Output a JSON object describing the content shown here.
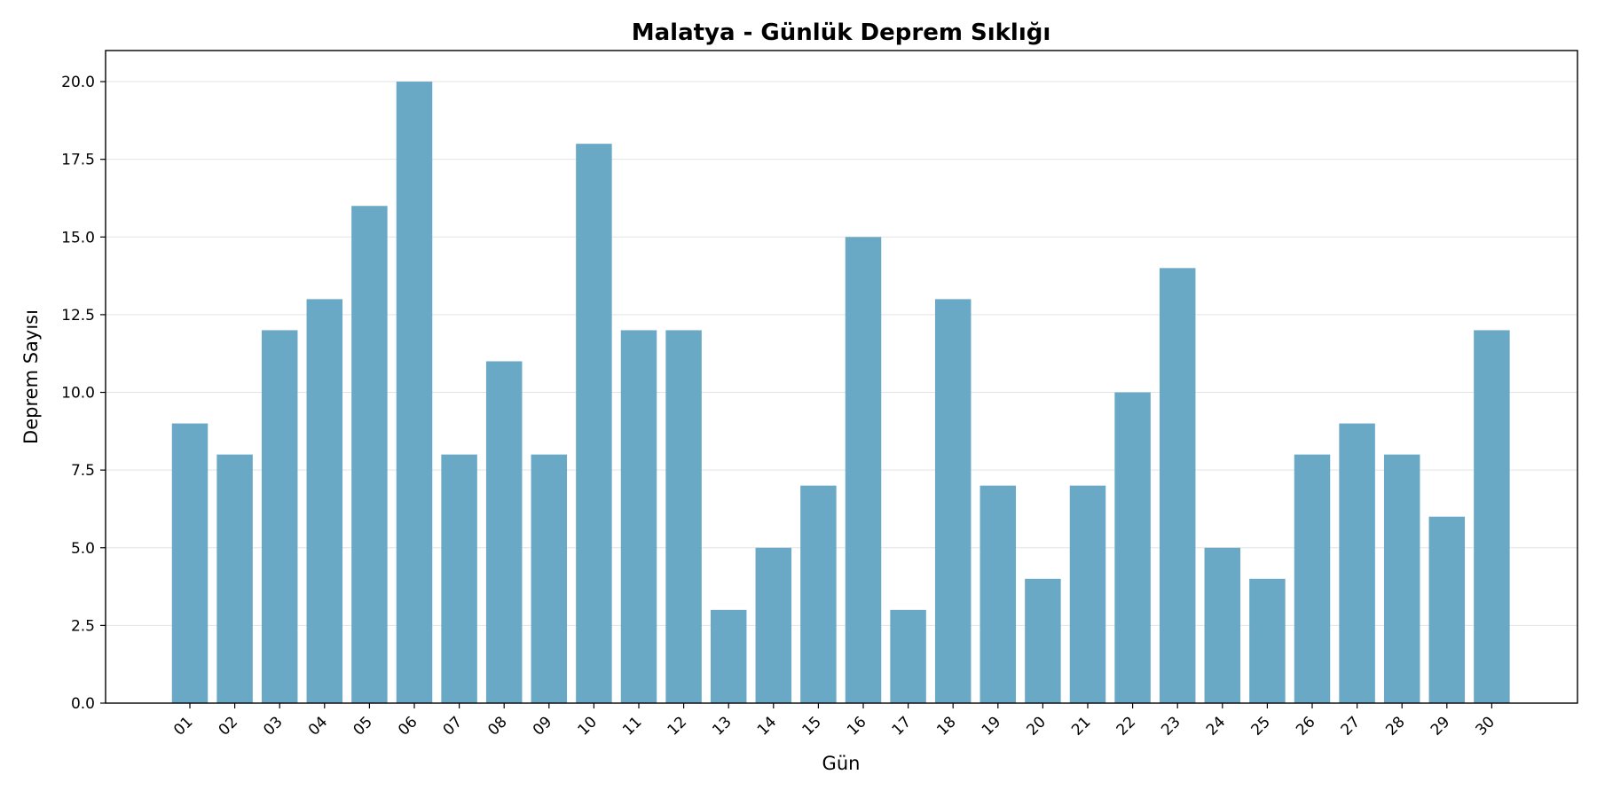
{
  "chart_data": {
    "type": "bar",
    "title": "Malatya - Günlük Deprem Sıklığı",
    "xlabel": "Gün",
    "ylabel": "Deprem Sayısı",
    "categories": [
      "01",
      "02",
      "03",
      "04",
      "05",
      "06",
      "07",
      "08",
      "09",
      "10",
      "11",
      "12",
      "13",
      "14",
      "15",
      "16",
      "17",
      "18",
      "19",
      "20",
      "21",
      "22",
      "23",
      "24",
      "25",
      "26",
      "27",
      "28",
      "29",
      "30"
    ],
    "values": [
      9,
      8,
      12,
      13,
      16,
      20,
      8,
      11,
      8,
      18,
      12,
      12,
      3,
      5,
      7,
      15,
      3,
      13,
      7,
      4,
      7,
      10,
      14,
      5,
      4,
      8,
      9,
      8,
      6,
      12
    ],
    "ylim": [
      0,
      21
    ],
    "yticks": [
      "0.0",
      "2.5",
      "5.0",
      "7.5",
      "10.0",
      "12.5",
      "15.0",
      "17.5",
      "20.0"
    ],
    "ytick_values": [
      0,
      2.5,
      5,
      7.5,
      10,
      12.5,
      15,
      17.5,
      20
    ],
    "grid": "y",
    "bar_color": "#6aa9c5",
    "x_tick_rotation": -45
  }
}
